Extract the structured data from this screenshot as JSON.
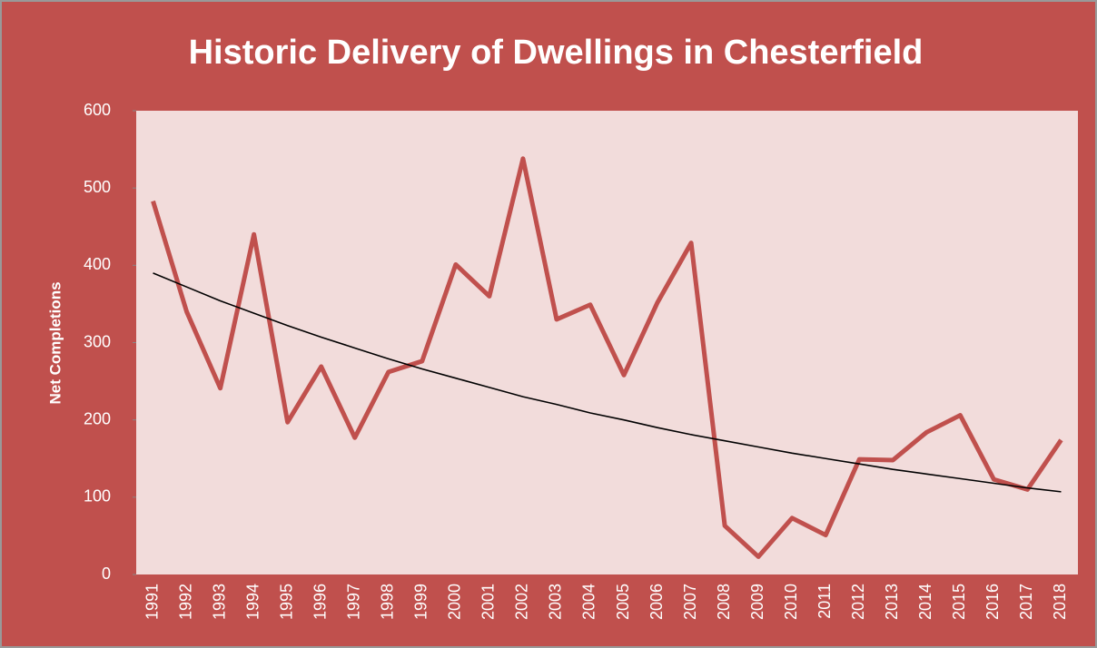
{
  "chart_data": {
    "type": "line",
    "title": "Historic Delivery of Dwellings in Chesterfield",
    "y_label": "Net Completions",
    "categories": [
      "1991",
      "1992",
      "1993",
      "1994",
      "1995",
      "1996",
      "1997",
      "1998",
      "1999",
      "2000",
      "2001",
      "2002",
      "2003",
      "2004",
      "2005",
      "2006",
      "2007",
      "2008",
      "2009",
      "2010",
      "2011",
      "2012",
      "2013",
      "2014",
      "2015",
      "2016",
      "2017",
      "2018"
    ],
    "series": [
      {
        "color": "#c0504d",
        "values": [
          483,
          340,
          241,
          440,
          197,
          269,
          177,
          262,
          276,
          401,
          360,
          538,
          330,
          349,
          258,
          352,
          429,
          63,
          23,
          73,
          51,
          149,
          148,
          184,
          206,
          123,
          110,
          174
        ]
      },
      {
        "color": "#000000",
        "values": [
          390,
          372,
          354,
          338,
          322,
          307,
          293,
          279,
          266,
          254,
          242,
          230,
          220,
          209,
          200,
          190,
          181,
          173,
          165,
          157,
          150,
          143,
          136,
          130,
          124,
          118,
          112,
          107
        ]
      }
    ],
    "ylim": [
      0,
      600
    ],
    "yticks": [
      0,
      100,
      200,
      300,
      400,
      500,
      600
    ],
    "plot_background": "#f2dcdb",
    "background": "#c0504d"
  }
}
